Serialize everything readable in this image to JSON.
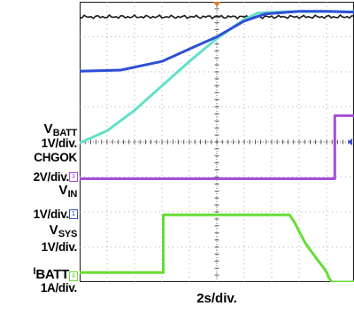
{
  "chart_data": {
    "type": "line",
    "title": "",
    "timebase": "2s/div.",
    "x_unit": "s",
    "x_per_div": 2,
    "x_divisions": 10,
    "y_divisions": 8,
    "xlim": [
      0,
      20
    ],
    "grid": true,
    "channel_labels": {
      "vbatt_main": "V",
      "vbatt_sub": "BATT",
      "vbatt_scale": "1V/div.",
      "chgok_main": "CHGOK",
      "chgok_scale": "2V/div.",
      "vin_main": "V",
      "vin_sub": "IN",
      "vin_scale": "1V/div.",
      "vsys_main": "V",
      "vsys_sub": "SYS",
      "vsys_scale": "1V/div.",
      "ibatt_prefix": "I",
      "ibatt_sub": "BATT",
      "ibatt_scale": "1A/div."
    },
    "markers": [
      {
        "id": "3",
        "color": "#a64dd8"
      },
      {
        "id": "1",
        "color": "#2e4fd6"
      },
      {
        "id": "4",
        "color": "#66dd33"
      }
    ],
    "series": [
      {
        "name": "VBATT",
        "color": "#63e0c8",
        "points": [
          [
            0,
            -0.03
          ],
          [
            2,
            0.32
          ],
          [
            4,
            0.9
          ],
          [
            6,
            1.6
          ],
          [
            8,
            2.3
          ],
          [
            10,
            2.95
          ],
          [
            12,
            3.5
          ],
          [
            13,
            3.68
          ],
          [
            15,
            3.72
          ],
          [
            20,
            3.72
          ]
        ]
      },
      {
        "name": "VIN",
        "color": "#2e4fd6",
        "points": [
          [
            0,
            2.02
          ],
          [
            3,
            2.05
          ],
          [
            6,
            2.3
          ],
          [
            8,
            2.65
          ],
          [
            10,
            3.0
          ],
          [
            12,
            3.45
          ],
          [
            13.5,
            3.65
          ],
          [
            16,
            3.73
          ],
          [
            18,
            3.73
          ],
          [
            20,
            3.7
          ]
        ]
      },
      {
        "name": "CHGOK",
        "color": "#a64dd8",
        "points": [
          [
            0,
            -1.05
          ],
          [
            18.6,
            -1.05
          ],
          [
            18.6,
            0.75
          ],
          [
            20,
            0.75
          ]
        ]
      },
      {
        "name": "VSYS",
        "color": "#66dd33",
        "points": [
          [
            0,
            -3.73
          ],
          [
            6.1,
            -3.73
          ],
          [
            6.1,
            -2.08
          ],
          [
            15.3,
            -2.08
          ],
          [
            15.5,
            -2.2
          ],
          [
            15.7,
            -2.32
          ],
          [
            15.9,
            -2.48
          ],
          [
            16.1,
            -2.63
          ],
          [
            16.3,
            -2.78
          ],
          [
            16.5,
            -2.92
          ],
          [
            16.8,
            -3.08
          ],
          [
            17.1,
            -3.24
          ],
          [
            17.4,
            -3.4
          ],
          [
            17.7,
            -3.55
          ],
          [
            18.0,
            -3.72
          ],
          [
            18.2,
            -3.9
          ],
          [
            18.4,
            -4.0
          ],
          [
            20,
            -4.0
          ]
        ]
      }
    ]
  }
}
